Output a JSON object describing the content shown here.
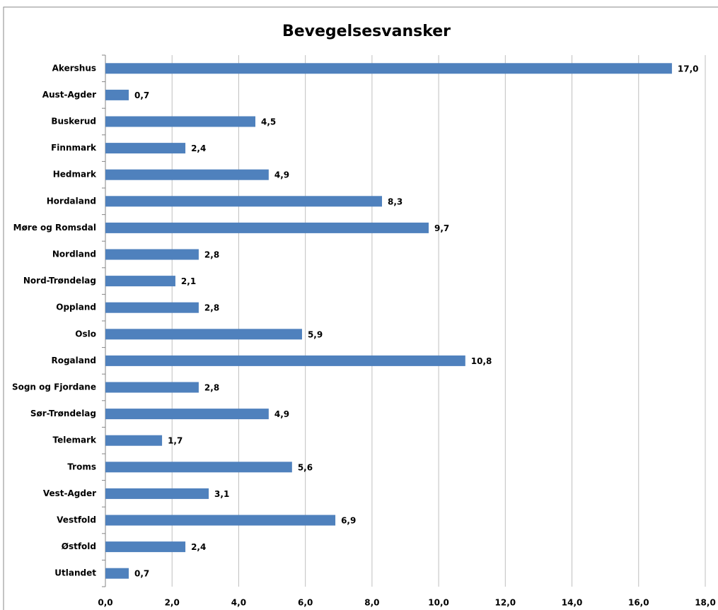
{
  "chart_data": {
    "type": "bar",
    "orientation": "horizontal",
    "title": "Bevegelsesvansker",
    "categories": [
      "Akershus",
      "Aust-Agder",
      "Buskerud",
      "Finnmark",
      "Hedmark",
      "Hordaland",
      "Møre og Romsdal",
      "Nordland",
      "Nord-Trøndelag",
      "Oppland",
      "Oslo",
      "Rogaland",
      "Sogn og Fjordane",
      "Sør-Trøndelag",
      "Telemark",
      "Troms",
      "Vest-Agder",
      "Vestfold",
      "Østfold",
      "Utlandet"
    ],
    "values": [
      17.0,
      0.7,
      4.5,
      2.4,
      4.9,
      8.3,
      9.7,
      2.8,
      2.1,
      2.8,
      5.9,
      10.8,
      2.8,
      4.9,
      1.7,
      5.6,
      3.1,
      6.9,
      2.4,
      0.7
    ],
    "value_labels": [
      "17,0",
      "0,7",
      "4,5",
      "2,4",
      "4,9",
      "8,3",
      "9,7",
      "2,8",
      "2,1",
      "2,8",
      "5,9",
      "10,8",
      "2,8",
      "4,9",
      "1,7",
      "5,6",
      "3,1",
      "6,9",
      "2,4",
      "0,7"
    ],
    "color": "#4f81bd",
    "xlim": [
      0,
      18
    ],
    "xticks": [
      {
        "value": 0,
        "label": "0,0"
      },
      {
        "value": 2,
        "label": "2,0"
      },
      {
        "value": 4,
        "label": "4,0"
      },
      {
        "value": 6,
        "label": "6,0"
      },
      {
        "value": 8,
        "label": "8,0"
      },
      {
        "value": 10,
        "label": "10,0"
      },
      {
        "value": 12,
        "label": "12,0"
      },
      {
        "value": 14,
        "label": "14,0"
      },
      {
        "value": 16,
        "label": "16,0"
      },
      {
        "value": 18,
        "label": "18,0"
      }
    ],
    "grid": true
  }
}
